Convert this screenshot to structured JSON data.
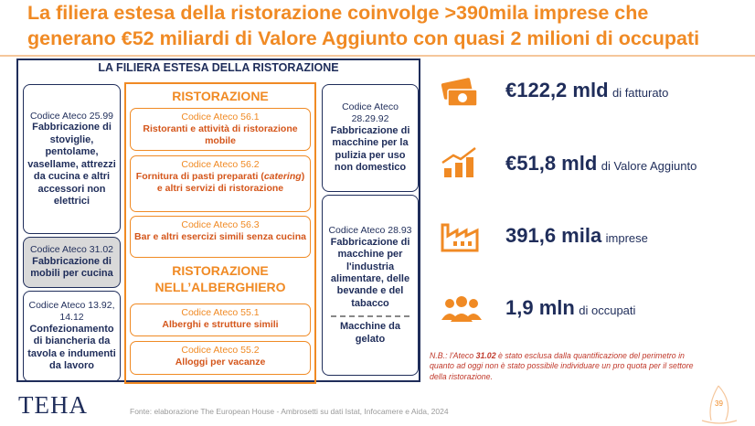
{
  "header": {
    "title_lines": [
      "La filiera estesa della ristorazione coinvolge >390mila imprese che",
      "generano €52 miliardi di Valore Aggiunto con quasi 2 milioni di occupati"
    ]
  },
  "diagram": {
    "title": "LA FILIERA ESTESA DELLA RISTORAZIONE",
    "left": [
      {
        "code": "Codice Ateco 25.99",
        "label": "Fabbricazione di stoviglie, pentolame, vasellame, attrezzi da cucina e altri accessori non elettrici"
      },
      {
        "code": "Codice Ateco 31.02",
        "label": "Fabbricazione di mobili per cucina"
      },
      {
        "code": "Codice Ateco 13.92, 14.12",
        "label": "Confezionamento di biancheria da tavola e indumenti da lavoro"
      }
    ],
    "center": {
      "heading1": "RISTORAZIONE",
      "group1": [
        {
          "code": "Codice Ateco 56.1",
          "label": "Ristoranti e attività di ristorazione mobile"
        },
        {
          "code": "Codice Ateco 56.2",
          "label_parts": [
            "Fornitura di pasti preparati (",
            "catering",
            ") e altri servizi di ristorazione"
          ]
        },
        {
          "code": "Codice Ateco 56.3",
          "label": "Bar e altri esercizi simili senza cucina"
        }
      ],
      "heading2": "RISTORAZIONE NELL’ALBERGHIERO",
      "group2": [
        {
          "code": "Codice Ateco 55.1",
          "label": "Alberghi e strutture simili"
        },
        {
          "code": "Codice Ateco 55.2",
          "label": "Alloggi per vacanze"
        }
      ]
    },
    "right": [
      {
        "code": "Codice Ateco 28.29.92",
        "label": "Fabbricazione di macchine per la pulizia per uso non domestico"
      },
      {
        "code": "Codice Ateco 28.93",
        "label": "Fabbricazione di macchine per l'industria alimentare, delle bevande e del tabacco",
        "extra": "Macchine da gelato"
      }
    ]
  },
  "stats": [
    {
      "value": "€122,2 mld",
      "label": "di fatturato"
    },
    {
      "value": "€51,8 mld",
      "label": "di Valore Aggiunto"
    },
    {
      "value": "391,6 mila",
      "label": "imprese"
    },
    {
      "value": "1,9 mln",
      "label": "di occupati"
    }
  ],
  "note": {
    "prefix": "N.B.: l'Ateco ",
    "code": "31.02",
    "text": " è stato esclusa dalla quantificazione del perimetro in quanto ad oggi non è stato possibile individuare un pro quota per il settore della ristorazione."
  },
  "footer": {
    "logo": "TEHA",
    "source": "Fonte: elaborazione The European House - Ambrosetti su dati Istat, Infocamere e Aida, 2024",
    "page": "39"
  }
}
